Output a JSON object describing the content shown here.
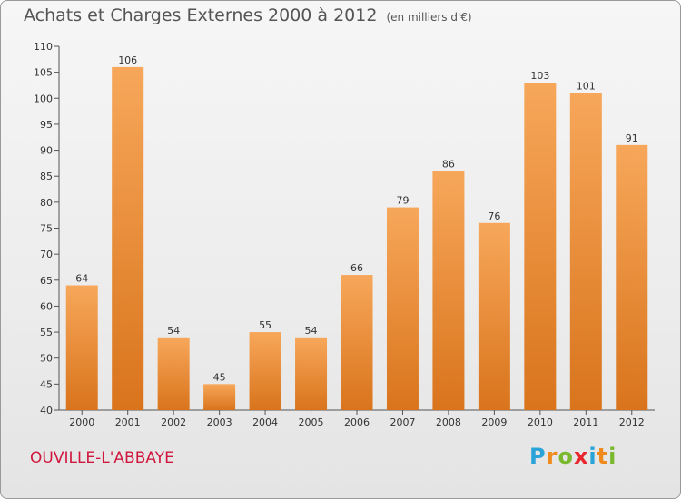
{
  "title": "Achats et Charges Externes 2000 à 2012",
  "subtitle": "(en milliers d'€)",
  "location": "OUVILLE-L'ABBAYE",
  "brand": {
    "letters": [
      "P",
      "r",
      "o",
      "x",
      "i",
      "t",
      "i"
    ],
    "colors": [
      "#2aa3d8",
      "#f08a1c",
      "#7ab92e",
      "#e8262c",
      "#2aa3d8",
      "#f08a1c",
      "#7ab92e"
    ]
  },
  "colors": {
    "bar_light": "#f7a75a",
    "bar_dark": "#d9741c",
    "axis_text": "#333333",
    "location": "#d0183f"
  },
  "chart_data": {
    "type": "bar",
    "categories": [
      "2000",
      "2001",
      "2002",
      "2003",
      "2004",
      "2005",
      "2006",
      "2007",
      "2008",
      "2009",
      "2010",
      "2011",
      "2012"
    ],
    "values": [
      64,
      106,
      54,
      45,
      55,
      54,
      66,
      79,
      86,
      76,
      103,
      101,
      91
    ],
    "title": "Achats et Charges Externes 2000 à 2012",
    "subtitle": "(en milliers d'€)",
    "xlabel": "",
    "ylabel": "",
    "ylim": [
      40,
      110
    ],
    "yticks": [
      40,
      45,
      50,
      55,
      60,
      65,
      70,
      75,
      80,
      85,
      90,
      95,
      100,
      105,
      110
    ],
    "grid": false,
    "legend": "none"
  }
}
